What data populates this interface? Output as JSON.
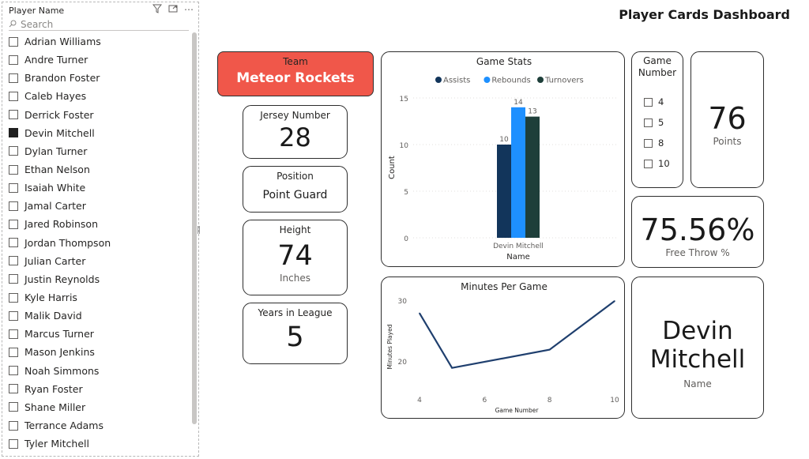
{
  "slicer": {
    "title": "Player Name",
    "search_placeholder": "Search",
    "items": [
      {
        "label": "Adrian Williams",
        "checked": false
      },
      {
        "label": "Andre Turner",
        "checked": false
      },
      {
        "label": "Brandon Foster",
        "checked": false
      },
      {
        "label": "Caleb Hayes",
        "checked": false
      },
      {
        "label": "Derrick Foster",
        "checked": false
      },
      {
        "label": "Devin Mitchell",
        "checked": true
      },
      {
        "label": "Dylan Turner",
        "checked": false
      },
      {
        "label": "Ethan Nelson",
        "checked": false
      },
      {
        "label": "Isaiah White",
        "checked": false
      },
      {
        "label": "Jamal Carter",
        "checked": false
      },
      {
        "label": "Jared Robinson",
        "checked": false
      },
      {
        "label": "Jordan Thompson",
        "checked": false
      },
      {
        "label": "Julian Carter",
        "checked": false
      },
      {
        "label": "Justin Reynolds",
        "checked": false
      },
      {
        "label": "Kyle Harris",
        "checked": false
      },
      {
        "label": "Malik David",
        "checked": false
      },
      {
        "label": "Marcus Turner",
        "checked": false
      },
      {
        "label": "Mason Jenkins",
        "checked": false
      },
      {
        "label": "Noah Simmons",
        "checked": false
      },
      {
        "label": "Ryan Foster",
        "checked": false
      },
      {
        "label": "Shane Miller",
        "checked": false
      },
      {
        "label": "Terrance Adams",
        "checked": false
      },
      {
        "label": "Tyler Mitchell",
        "checked": false
      }
    ]
  },
  "dashboard_title": "Player Cards Dashboard",
  "team": {
    "label": "Team",
    "value": "Meteor Rockets",
    "color": "#f0574a"
  },
  "jersey": {
    "label": "Jersey Number",
    "value": "28"
  },
  "position": {
    "label": "Position",
    "value": "Point Guard"
  },
  "height": {
    "label": "Height",
    "value": "74",
    "unit": "Inches"
  },
  "years": {
    "label": "Years in League",
    "value": "5"
  },
  "game_number": {
    "title": "Game Number",
    "options": [
      "4",
      "5",
      "8",
      "10"
    ]
  },
  "points": {
    "value": "76",
    "label": "Points"
  },
  "free_throw": {
    "value": "75.56%",
    "label": "Free Throw %"
  },
  "name_card": {
    "value_line1": "Devin",
    "value_line2": "Mitchell",
    "label": "Name"
  },
  "chart_data": [
    {
      "type": "bar",
      "title": "Game Stats",
      "categories": [
        "Devin Mitchell"
      ],
      "series": [
        {
          "name": "Assists",
          "values": [
            10
          ],
          "color": "#12355b"
        },
        {
          "name": "Rebounds",
          "values": [
            14
          ],
          "color": "#1e90ff"
        },
        {
          "name": "Turnovers",
          "values": [
            13
          ],
          "color": "#1e3f3a"
        }
      ],
      "xlabel": "Name",
      "ylabel": "Count",
      "ylim": [
        0,
        15
      ],
      "yticks": [
        0,
        5,
        10,
        15
      ],
      "legend": "top-center",
      "grid": true
    },
    {
      "type": "line",
      "title": "Minutes Per Game",
      "x": [
        4,
        5,
        8,
        10
      ],
      "y": [
        28,
        19,
        22,
        30
      ],
      "xticks": [
        4,
        6,
        8,
        10
      ],
      "yticks": [
        20,
        30
      ],
      "xlabel": "Game Number",
      "ylabel": "Minutes Played",
      "color": "#1f3f6e",
      "grid": false
    }
  ]
}
